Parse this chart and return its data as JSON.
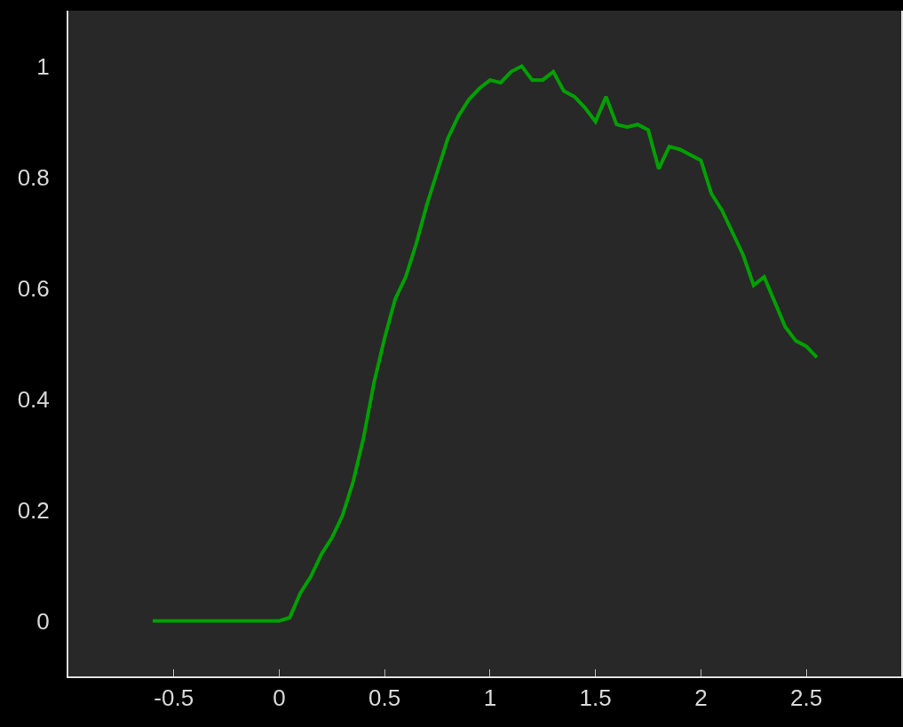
{
  "chart_data": {
    "type": "line",
    "x": [
      -0.6,
      -0.55,
      -0.5,
      -0.45,
      -0.4,
      -0.35,
      -0.3,
      -0.25,
      -0.2,
      -0.15,
      -0.1,
      -0.05,
      0,
      0.05,
      0.1,
      0.15,
      0.2,
      0.25,
      0.3,
      0.35,
      0.4,
      0.45,
      0.5,
      0.55,
      0.6,
      0.65,
      0.7,
      0.75,
      0.8,
      0.85,
      0.9,
      0.95,
      1.0,
      1.05,
      1.1,
      1.15,
      1.2,
      1.25,
      1.3,
      1.35,
      1.4,
      1.45,
      1.5,
      1.55,
      1.6,
      1.65,
      1.7,
      1.75,
      1.8,
      1.85,
      1.9,
      1.95,
      2.0,
      2.05,
      2.1,
      2.15,
      2.2,
      2.25,
      2.3,
      2.35,
      2.4,
      2.45,
      2.5,
      2.55
    ],
    "series": [
      {
        "color": "#00a000",
        "values": [
          0,
          0,
          0,
          0,
          0,
          0,
          0,
          0,
          0,
          0,
          0,
          0,
          0,
          0.006,
          0.05,
          0.08,
          0.12,
          0.15,
          0.19,
          0.25,
          0.33,
          0.43,
          0.51,
          0.58,
          0.62,
          0.68,
          0.75,
          0.81,
          0.87,
          0.91,
          0.94,
          0.96,
          0.975,
          0.97,
          0.99,
          1.0,
          0.975,
          0.975,
          0.99,
          0.955,
          0.945,
          0.925,
          0.9,
          0.945,
          0.895,
          0.89,
          0.895,
          0.885,
          0.815,
          0.855,
          0.85,
          0.84,
          0.83,
          0.77,
          0.74,
          0.7,
          0.66,
          0.605,
          0.62,
          0.575,
          0.53,
          0.505,
          0.495,
          0.475
        ]
      }
    ],
    "xlim": [
      -1.0,
      2.95
    ],
    "ylim": [
      -0.1,
      1.1
    ],
    "xticks": [
      -0.5,
      0,
      0.5,
      1,
      1.5,
      2,
      2.5
    ],
    "yticks": [
      0,
      0.2,
      0.4,
      0.6,
      0.8,
      1
    ],
    "grid": false,
    "marker": "none",
    "line_style": "solid"
  }
}
